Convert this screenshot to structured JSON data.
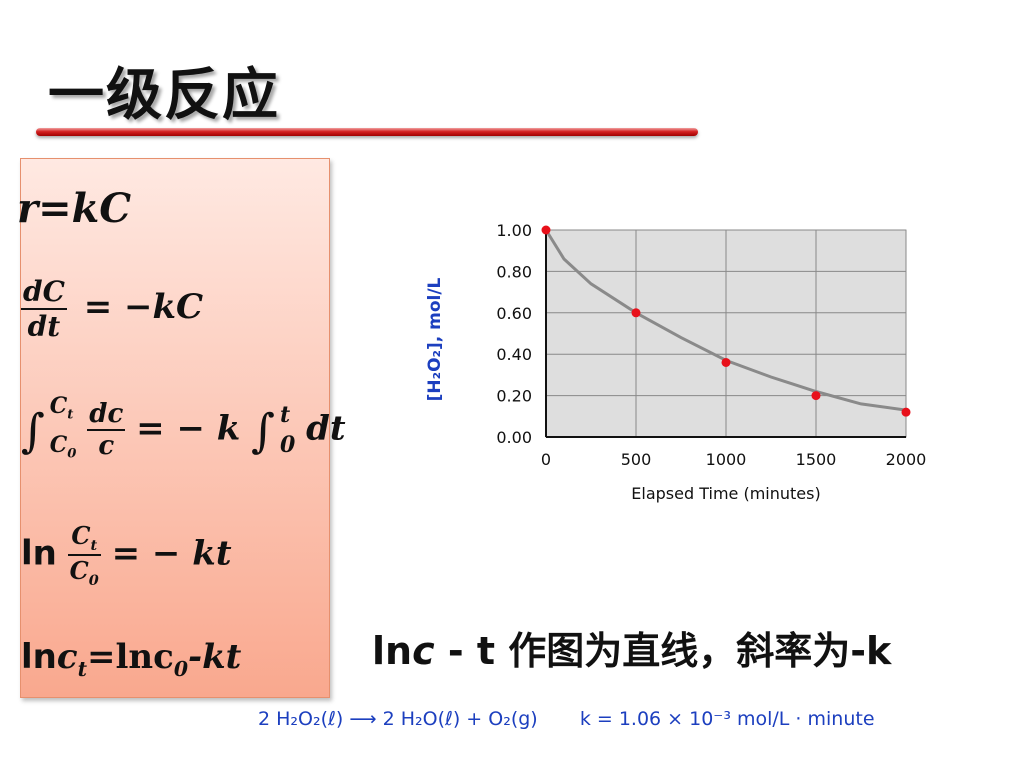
{
  "slide": {
    "title": "一级反应",
    "note": {
      "ln": "ln",
      "c": "c",
      "rest": " - t 作图为直线，斜率为-k"
    },
    "equation": {
      "reaction": "2 H₂O₂(ℓ) ⟶ 2 H₂O(ℓ) + O₂(g)",
      "rate": "k = 1.06 × 10⁻³ mol/L · minute"
    }
  },
  "formulas": {
    "rate_law": "r=kC",
    "diff": {
      "num": "dC",
      "den": "dt",
      "rhs": "= −kC"
    },
    "integral": {
      "lower": "C",
      "lower_sub": "0",
      "upper": "C",
      "upper_sub": "t",
      "num": "dc",
      "den": "c",
      "mid": "= − k",
      "upper2": "t",
      "lower2": "0",
      "tail": "dt"
    },
    "log_ratio": {
      "prefix": "ln",
      "num": "C",
      "num_sub": "t",
      "den": "C",
      "den_sub": "0",
      "rhs": "= − kt"
    },
    "log_linear": {
      "a": "ln",
      "b": "c",
      "b_sub": "t",
      "c": "=lnc",
      "c_sub": "0",
      "d": "-kt"
    }
  },
  "chart_data": {
    "type": "scatter",
    "xlabel": "Elapsed Time (minutes)",
    "ylabel": "[H₂O₂], mol/L",
    "xlim": [
      0,
      2000
    ],
    "ylim": [
      0,
      1.0
    ],
    "xticks": [
      "0",
      "500",
      "1000",
      "1500",
      "2000"
    ],
    "yticks": [
      "0.00",
      "0.20",
      "0.40",
      "0.60",
      "0.80",
      "1.00"
    ],
    "grid": true,
    "points": {
      "x": [
        0,
        500,
        1000,
        1500,
        2000
      ],
      "y": [
        1.0,
        0.6,
        0.36,
        0.2,
        0.12
      ]
    },
    "curve": {
      "x": [
        0,
        100,
        250,
        500,
        750,
        1000,
        1250,
        1500,
        1750,
        2000
      ],
      "y": [
        1.0,
        0.86,
        0.74,
        0.6,
        0.48,
        0.37,
        0.29,
        0.22,
        0.16,
        0.13
      ]
    },
    "colors": {
      "points": "#e8101a",
      "curve": "#8a8a8a",
      "plot_bg": "#dedede",
      "grid": "#ffffff",
      "ylabel": "#1c3fbf"
    }
  }
}
